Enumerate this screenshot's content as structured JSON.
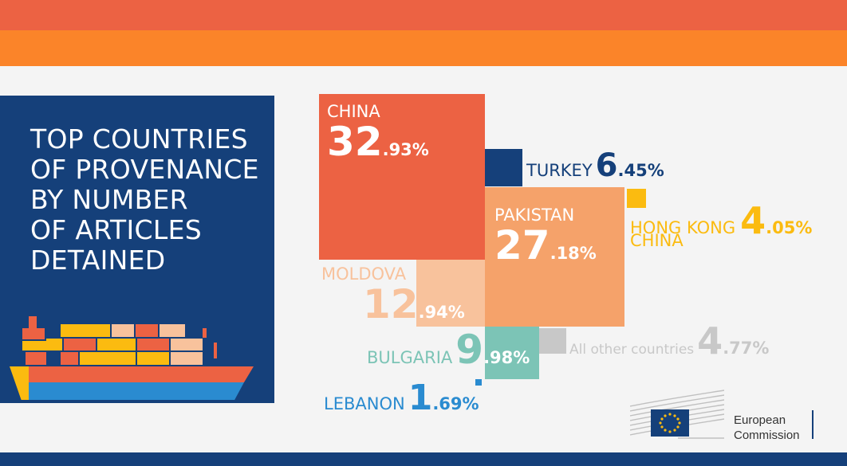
{
  "title_lines": [
    "TOP COUNTRIES",
    "OF PROVENANCE",
    "BY NUMBER",
    "OF ARTICLES",
    "DETAINED"
  ],
  "colors": {
    "china": "#ec6243",
    "pakistan": "#f5a26a",
    "moldova": "#f8c29c",
    "bulgaria": "#7cc4b6",
    "turkey": "#15407a",
    "hongkong": "#fbbb10",
    "lebanon": "#2a8bd0",
    "other": "#c8c8c8",
    "panel": "#15407a"
  },
  "chart_data": {
    "type": "treemap",
    "unit": "%",
    "items": [
      {
        "id": "china",
        "country": "CHINA",
        "country_line2": "",
        "int": "32",
        "dec": ".93%",
        "value": 32.93
      },
      {
        "id": "pakistan",
        "country": "PAKISTAN",
        "country_line2": "",
        "int": "27",
        "dec": ".18%",
        "value": 27.18
      },
      {
        "id": "moldova",
        "country": "MOLDOVA",
        "country_line2": "",
        "int": "12",
        "dec": ".94%",
        "value": 12.94
      },
      {
        "id": "bulgaria",
        "country": "BULGARIA",
        "country_line2": "",
        "int": "9",
        "dec": ".98%",
        "value": 9.98
      },
      {
        "id": "turkey",
        "country": "TURKEY",
        "country_line2": "",
        "int": "6",
        "dec": ".45%",
        "value": 6.45
      },
      {
        "id": "other",
        "country": "All other countries",
        "country_line2": "",
        "int": "4",
        "dec": ".77%",
        "value": 4.77
      },
      {
        "id": "hongkong",
        "country": "HONG KONG",
        "country_line2": "CHINA",
        "int": "4",
        "dec": ".05%",
        "value": 4.05
      },
      {
        "id": "lebanon",
        "country": "LEBANON",
        "country_line2": "",
        "int": "1",
        "dec": ".69%",
        "value": 1.69
      }
    ]
  },
  "logo": {
    "line1": "European",
    "line2": "Commission"
  }
}
